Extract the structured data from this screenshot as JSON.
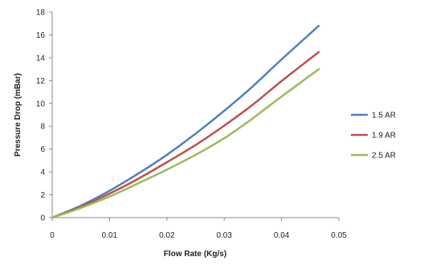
{
  "chart_data": {
    "type": "line",
    "title": "",
    "xlabel": "Flow Rate (Kg/s)",
    "ylabel": "Pressure Drop (mBar)",
    "xlim": [
      0,
      0.05
    ],
    "ylim": [
      0,
      18
    ],
    "x_ticks": [
      0,
      0.01,
      0.02,
      0.03,
      0.04,
      0.05
    ],
    "x_tick_labels": [
      "0",
      "0.01",
      "0.02",
      "0.03",
      "0.04",
      "0.05"
    ],
    "y_ticks": [
      0,
      2,
      4,
      6,
      8,
      10,
      12,
      14,
      16,
      18
    ],
    "y_tick_labels": [
      "0",
      "2",
      "4",
      "6",
      "8",
      "10",
      "12",
      "14",
      "16",
      "18"
    ],
    "grid": false,
    "legend_position": "right",
    "x": [
      0,
      0.005,
      0.01,
      0.015,
      0.02,
      0.025,
      0.03,
      0.035,
      0.04,
      0.0465
    ],
    "series": [
      {
        "name": "1.5 AR",
        "color": "#4f81bd",
        "values": [
          0,
          1.05,
          2.35,
          3.85,
          5.5,
          7.35,
          9.35,
          11.5,
          13.85,
          16.8
        ]
      },
      {
        "name": "1.9 AR",
        "color": "#c0504d",
        "values": [
          0,
          0.95,
          2.1,
          3.4,
          4.85,
          6.35,
          8.05,
          9.9,
          11.95,
          14.5
        ]
      },
      {
        "name": "2.5 AR",
        "color": "#9bbb59",
        "values": [
          0,
          0.85,
          1.85,
          3.0,
          4.2,
          5.5,
          6.95,
          8.7,
          10.6,
          13.0
        ]
      }
    ]
  }
}
